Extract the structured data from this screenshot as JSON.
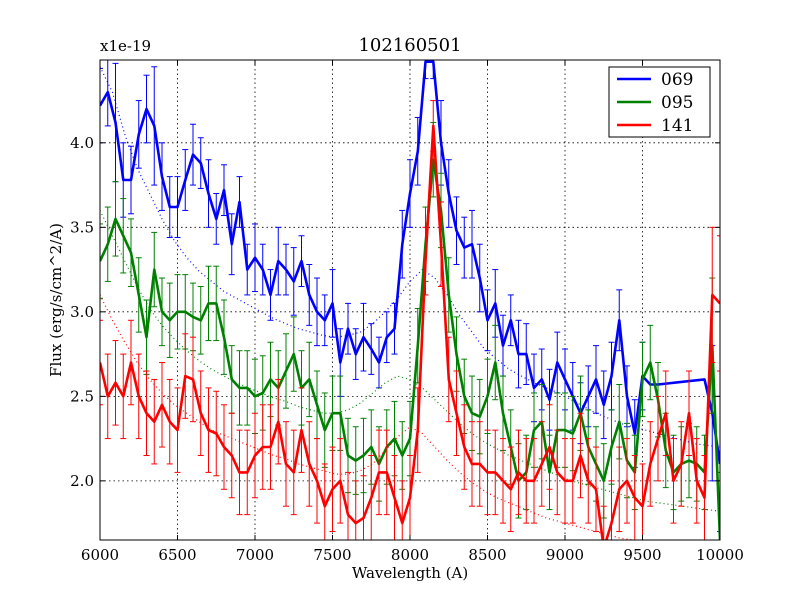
{
  "chart_data": {
    "type": "line",
    "title": "102160501",
    "xlabel": "Wavelength (A)",
    "ylabel": "Flux (erg/s/cm^2/A)",
    "y_scale_label": "x1e-19",
    "xlim": [
      6000,
      10000
    ],
    "ylim": [
      1.65,
      4.49
    ],
    "x_ticks": [
      6000,
      6500,
      7000,
      7500,
      8000,
      8500,
      9000,
      9500,
      10000
    ],
    "x_tick_labels": [
      "6000",
      "6500",
      "7000",
      "7500",
      "8000",
      "8500",
      "9000",
      "9500",
      "10000"
    ],
    "y_ticks": [
      2.0,
      2.5,
      3.0,
      3.5,
      4.0
    ],
    "y_tick_labels": [
      "2.0",
      "2.5",
      "3.0",
      "3.5",
      "4.0"
    ],
    "grid": true,
    "legend_position": "top-right",
    "series": [
      {
        "name": "069",
        "color": "#0000ff",
        "x": [
          6000,
          6050,
          6100,
          6150,
          6200,
          6250,
          6300,
          6350,
          6400,
          6450,
          6500,
          6550,
          6600,
          6650,
          6700,
          6750,
          6800,
          6850,
          6900,
          6950,
          7000,
          7050,
          7100,
          7150,
          7200,
          7250,
          7300,
          7350,
          7400,
          7450,
          7500,
          7550,
          7600,
          7650,
          7700,
          7750,
          7800,
          7850,
          7900,
          7950,
          8000,
          8050,
          8100,
          8150,
          8200,
          8250,
          8300,
          8350,
          8400,
          8450,
          8500,
          8550,
          8600,
          8650,
          8700,
          8750,
          8800,
          8850,
          8900,
          8950,
          9000,
          9050,
          9100,
          9150,
          9200,
          9250,
          9300,
          9350,
          9400,
          9450,
          9500,
          9550,
          9600,
          9900,
          9950,
          10000
        ],
        "values": [
          4.22,
          4.3,
          4.12,
          3.78,
          3.78,
          4.05,
          4.2,
          4.1,
          3.8,
          3.62,
          3.62,
          3.78,
          3.93,
          3.88,
          3.7,
          3.55,
          3.72,
          3.4,
          3.65,
          3.25,
          3.32,
          3.25,
          3.1,
          3.3,
          3.25,
          3.18,
          3.3,
          3.1,
          3.0,
          2.95,
          3.05,
          2.7,
          2.9,
          2.75,
          2.85,
          2.78,
          2.7,
          2.85,
          2.9,
          3.4,
          3.7,
          3.95,
          4.48,
          4.48,
          4.0,
          3.7,
          3.48,
          3.38,
          3.4,
          3.2,
          2.95,
          3.05,
          2.8,
          2.95,
          2.75,
          2.75,
          2.55,
          2.6,
          2.48,
          2.7,
          2.6,
          2.5,
          2.4,
          2.5,
          2.6,
          2.45,
          2.62,
          2.95,
          2.5,
          2.28,
          2.62,
          2.57,
          2.57,
          2.6,
          2.4,
          2.1
        ],
        "errors": [
          0.22,
          0.2,
          0.35,
          0.22,
          0.2,
          0.2,
          0.2,
          0.35,
          0.2,
          0.18,
          0.18,
          0.18,
          0.18,
          0.15,
          0.2,
          0.15,
          0.15,
          0.18,
          0.15,
          0.15,
          0.2,
          0.15,
          0.15,
          0.2,
          0.15,
          0.2,
          0.15,
          0.18,
          0.2,
          0.15,
          0.2,
          0.2,
          0.15,
          0.15,
          0.2,
          0.15,
          0.15,
          0.15,
          0.15,
          0.2,
          0.2,
          0.2,
          0.1,
          0.1,
          0.25,
          0.2,
          0.2,
          0.18,
          0.2,
          0.2,
          0.18,
          0.2,
          0.18,
          0.15,
          0.2,
          0.18,
          0.2,
          0.18,
          0.18,
          0.18,
          0.18,
          0.2,
          0.18,
          0.18,
          0.2,
          0.2,
          0.2,
          0.18,
          0.18,
          0.2,
          0.2,
          0,
          0,
          0,
          0.4,
          0.4
        ],
        "model": [
          4.45,
          4.3,
          4.05,
          3.85,
          3.7,
          3.55,
          3.42,
          3.32,
          3.24,
          3.18,
          3.12,
          3.08,
          3.04,
          3.0,
          2.96,
          2.93,
          2.9,
          2.88,
          2.86,
          2.85,
          2.86,
          2.88,
          2.93,
          3.0,
          3.08,
          3.18,
          3.25,
          3.2,
          3.1,
          2.98,
          2.88,
          2.78,
          2.72,
          2.66,
          2.62,
          2.58,
          2.55,
          2.52,
          2.48,
          2.44,
          2.4,
          2.37,
          2.34,
          2.32,
          2.3,
          2.28,
          2.26,
          2.24,
          2.22,
          2.21,
          2.2
        ]
      },
      {
        "name": "095",
        "color": "#008000",
        "x": [
          6000,
          6050,
          6100,
          6150,
          6200,
          6250,
          6300,
          6350,
          6400,
          6450,
          6500,
          6550,
          6600,
          6650,
          6700,
          6750,
          6800,
          6850,
          6900,
          6950,
          7000,
          7050,
          7100,
          7150,
          7200,
          7250,
          7300,
          7350,
          7400,
          7450,
          7500,
          7550,
          7600,
          7650,
          7700,
          7750,
          7800,
          7850,
          7900,
          7950,
          8000,
          8050,
          8100,
          8150,
          8200,
          8250,
          8300,
          8350,
          8400,
          8450,
          8500,
          8550,
          8600,
          8650,
          8700,
          8750,
          8800,
          8850,
          8900,
          8950,
          9000,
          9050,
          9100,
          9150,
          9200,
          9250,
          9300,
          9350,
          9400,
          9450,
          9500,
          9550,
          9600,
          9650,
          9700,
          9750,
          9800,
          9850,
          9900,
          9950,
          10000
        ],
        "values": [
          3.3,
          3.4,
          3.55,
          3.45,
          3.35,
          3.1,
          2.85,
          3.25,
          3.0,
          2.95,
          3.0,
          3.0,
          2.97,
          2.95,
          3.05,
          3.05,
          2.85,
          2.6,
          2.55,
          2.55,
          2.5,
          2.52,
          2.6,
          2.55,
          2.65,
          2.75,
          2.55,
          2.6,
          2.45,
          2.3,
          2.4,
          2.4,
          2.15,
          2.12,
          2.15,
          2.2,
          2.1,
          2.2,
          2.25,
          2.15,
          2.25,
          2.8,
          3.4,
          3.9,
          3.6,
          3.1,
          2.75,
          2.5,
          2.4,
          2.38,
          2.5,
          2.7,
          2.4,
          2.2,
          2.0,
          2.05,
          2.3,
          2.35,
          2.05,
          2.3,
          2.3,
          2.28,
          2.4,
          2.2,
          2.1,
          2.0,
          2.2,
          2.35,
          2.12,
          2.05,
          2.6,
          2.7,
          2.48,
          2.18,
          2.05,
          2.1,
          2.12,
          2.1,
          2.05,
          2.8,
          1.65
        ],
        "errors": [
          0.22,
          0.22,
          0.22,
          0.22,
          0.2,
          0.22,
          0.22,
          0.22,
          0.2,
          0.22,
          0.22,
          0.22,
          0.2,
          0.2,
          0.22,
          0.22,
          0.22,
          0.2,
          0.22,
          0.22,
          0.22,
          0.22,
          0.22,
          0.22,
          0.22,
          0.22,
          0.22,
          0.22,
          0.2,
          0.22,
          0.22,
          0.22,
          0.22,
          0.2,
          0.22,
          0.22,
          0.22,
          0.22,
          0.22,
          0.2,
          0.22,
          0.22,
          0.22,
          0.22,
          0.22,
          0.22,
          0.22,
          0.22,
          0.22,
          0.22,
          0.22,
          0.22,
          0.22,
          0.22,
          0.22,
          0.22,
          0.22,
          0.22,
          0.22,
          0.22,
          0.22,
          0.22,
          0.22,
          0.22,
          0.22,
          0.22,
          0.22,
          0.22,
          0.22,
          0.22,
          0.22,
          0.22,
          0.22,
          0.22,
          0.22,
          0.22,
          0.22,
          0.22,
          0.22,
          0.4,
          0.4
        ],
        "model": [
          3.6,
          3.45,
          3.3,
          3.15,
          3.02,
          2.92,
          2.84,
          2.77,
          2.71,
          2.66,
          2.62,
          2.58,
          2.55,
          2.52,
          2.49,
          2.47,
          2.44,
          2.42,
          2.4,
          2.4,
          2.42,
          2.46,
          2.52,
          2.58,
          2.62,
          2.6,
          2.55,
          2.48,
          2.41,
          2.34,
          2.28,
          2.23,
          2.19,
          2.15,
          2.12,
          2.09,
          2.06,
          2.03,
          2.0,
          1.98,
          1.96,
          1.94,
          1.92,
          1.9,
          1.88,
          1.87,
          1.86,
          1.85,
          1.84,
          1.83,
          1.82
        ]
      },
      {
        "name": "141",
        "color": "#ff0000",
        "x": [
          6000,
          6050,
          6100,
          6150,
          6200,
          6250,
          6300,
          6350,
          6400,
          6450,
          6500,
          6550,
          6600,
          6650,
          6700,
          6750,
          6800,
          6850,
          6900,
          6950,
          7000,
          7050,
          7100,
          7150,
          7200,
          7250,
          7300,
          7350,
          7400,
          7450,
          7500,
          7550,
          7600,
          7650,
          7700,
          7750,
          7800,
          7850,
          7900,
          7950,
          8000,
          8050,
          8100,
          8150,
          8200,
          8250,
          8300,
          8350,
          8400,
          8450,
          8500,
          8550,
          8600,
          8650,
          8700,
          8750,
          8800,
          8850,
          8900,
          8950,
          9000,
          9050,
          9100,
          9150,
          9200,
          9250,
          9300,
          9350,
          9400,
          9450,
          9500,
          9550,
          9600,
          9650,
          9700,
          9750,
          9800,
          9850,
          9900,
          9950,
          10000
        ],
        "values": [
          2.7,
          2.5,
          2.58,
          2.5,
          2.7,
          2.5,
          2.4,
          2.35,
          2.45,
          2.35,
          2.3,
          2.62,
          2.6,
          2.4,
          2.3,
          2.28,
          2.2,
          2.15,
          2.05,
          2.05,
          2.15,
          2.2,
          2.2,
          2.35,
          2.1,
          2.05,
          2.3,
          2.1,
          2.0,
          1.85,
          1.95,
          2.0,
          1.8,
          1.75,
          1.78,
          1.9,
          2.05,
          2.05,
          1.9,
          1.75,
          1.9,
          2.3,
          3.3,
          4.1,
          3.4,
          2.6,
          2.4,
          2.2,
          2.1,
          2.1,
          2.05,
          2.05,
          2.0,
          1.95,
          2.05,
          2.0,
          2.0,
          2.1,
          2.2,
          2.05,
          2.0,
          2.0,
          2.15,
          2.0,
          1.95,
          1.6,
          1.75,
          1.95,
          2.0,
          1.9,
          1.85,
          2.1,
          2.25,
          2.4,
          2.0,
          2.1,
          2.4,
          2.0,
          1.9,
          3.1,
          3.05
        ],
        "errors": [
          0.25,
          0.25,
          0.25,
          0.25,
          0.25,
          0.25,
          0.25,
          0.25,
          0.25,
          0.25,
          0.25,
          0.25,
          0.25,
          0.25,
          0.25,
          0.25,
          0.25,
          0.25,
          0.25,
          0.25,
          0.25,
          0.25,
          0.25,
          0.25,
          0.25,
          0.25,
          0.25,
          0.25,
          0.25,
          0.25,
          0.25,
          0.25,
          0.25,
          0.25,
          0.25,
          0.25,
          0.25,
          0.25,
          0.25,
          0.25,
          0.25,
          0.25,
          0.2,
          0.15,
          0.25,
          0.25,
          0.25,
          0.25,
          0.25,
          0.25,
          0.25,
          0.25,
          0.25,
          0.25,
          0.25,
          0.25,
          0.25,
          0.25,
          0.25,
          0.25,
          0.25,
          0.25,
          0.25,
          0.25,
          0.25,
          0.25,
          0.25,
          0.25,
          0.25,
          0.25,
          0.25,
          0.25,
          0.25,
          0.25,
          0.25,
          0.25,
          0.25,
          0.25,
          0.25,
          0.4,
          0.4
        ],
        "model": [
          3.1,
          2.95,
          2.82,
          2.7,
          2.6,
          2.52,
          2.45,
          2.4,
          2.35,
          2.3,
          2.27,
          2.24,
          2.21,
          2.18,
          2.15,
          2.13,
          2.1,
          2.08,
          2.06,
          2.04,
          2.04,
          2.06,
          2.1,
          2.18,
          2.26,
          2.32,
          2.28,
          2.2,
          2.12,
          2.05,
          1.99,
          1.94,
          1.9,
          1.87,
          1.84,
          1.81,
          1.78,
          1.76,
          1.74,
          1.72,
          1.7,
          1.68,
          1.66,
          1.65,
          1.64,
          1.63,
          1.62,
          1.61,
          1.6,
          1.59,
          1.58
        ]
      }
    ]
  }
}
